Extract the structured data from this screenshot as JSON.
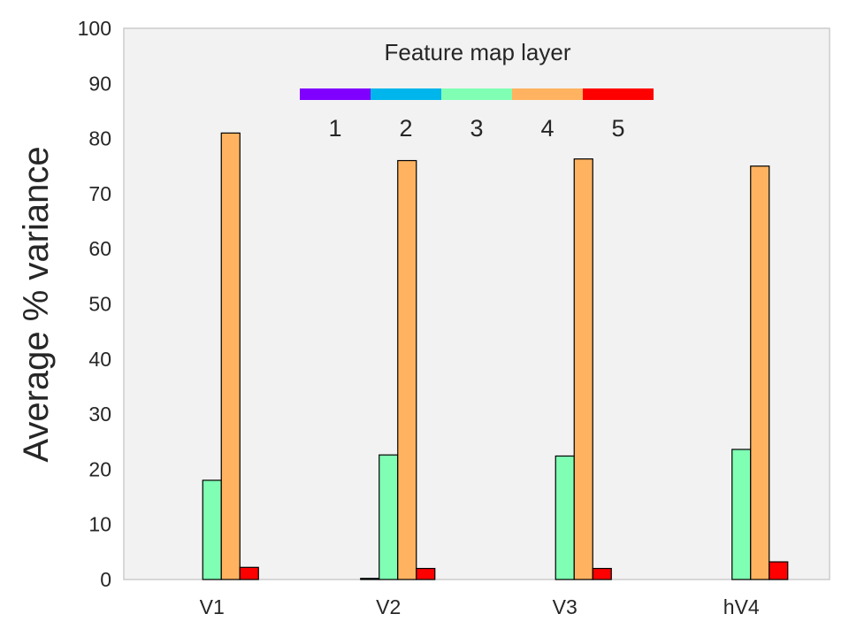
{
  "chart_data": {
    "type": "bar",
    "categories": [
      "V1",
      "V2",
      "V3",
      "hV4"
    ],
    "series": [
      {
        "name": "1",
        "color": "#8000ff",
        "values": [
          0,
          0,
          0,
          0
        ]
      },
      {
        "name": "2",
        "color": "#00b5eb",
        "values": [
          0,
          0.2,
          0,
          0
        ]
      },
      {
        "name": "3",
        "color": "#80ffb4",
        "values": [
          18,
          22.6,
          22.4,
          23.6
        ]
      },
      {
        "name": "4",
        "color": "#ffb360",
        "values": [
          81,
          76,
          76.3,
          75
        ]
      },
      {
        "name": "5",
        "color": "#ff0000",
        "values": [
          2.2,
          2.0,
          2.0,
          3.2
        ]
      }
    ],
    "ylabel": "Average % variance",
    "xlabel": "",
    "ylim": [
      0,
      100
    ],
    "yticks": [
      0,
      10,
      20,
      30,
      40,
      50,
      60,
      70,
      80,
      90,
      100
    ],
    "grid": false,
    "legend": {
      "title": "Feature map layer",
      "placement": "top-center",
      "style": "colorbar",
      "labels": [
        "1",
        "2",
        "3",
        "4",
        "5"
      ]
    }
  }
}
